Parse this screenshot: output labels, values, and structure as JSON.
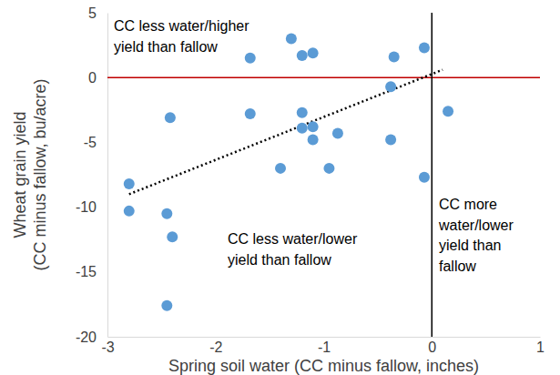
{
  "chart_data": {
    "type": "scatter",
    "x_label": "Spring soil water (CC minus fallow, inches)",
    "y_label": [
      "Wheat grain yield",
      "(CC minus fallow, bu/acre)"
    ],
    "x": [
      -2.8,
      -2.8,
      -2.45,
      -2.42,
      -2.4,
      -2.45,
      -1.68,
      -1.68,
      -1.4,
      -1.3,
      -1.2,
      -1.2,
      -1.2,
      -1.1,
      -1.1,
      -1.1,
      -0.95,
      -0.87,
      -0.38,
      -0.38,
      -0.35,
      -0.07,
      -0.07,
      0.15
    ],
    "values": [
      -8.2,
      -10.3,
      -10.5,
      -3.1,
      -12.3,
      -17.6,
      1.5,
      -2.8,
      -7.0,
      3.0,
      1.7,
      -2.7,
      -3.9,
      1.9,
      -3.8,
      -4.8,
      -7.0,
      -4.3,
      -0.7,
      -4.8,
      1.6,
      2.3,
      -7.7,
      -2.6
    ],
    "color": "#5b9bd5",
    "marker": "circle",
    "trendline": {
      "x": [
        -2.8,
        0.1
      ],
      "values": [
        -9.0,
        0.6
      ],
      "color": "#000000",
      "line_style": "dotted"
    },
    "hline": {
      "value": 0,
      "color": "#c00000"
    },
    "vline": {
      "value": 0,
      "color": "#000000"
    },
    "annotations": [
      {
        "lines": [
          "CC less water/higher",
          "yield than fallow"
        ]
      },
      {
        "lines": [
          "CC less water/lower",
          "yield than fallow"
        ]
      },
      {
        "lines": [
          "CC more",
          "water/lower",
          "yield than",
          "fallow"
        ]
      }
    ],
    "xlim": [
      -3,
      1
    ],
    "xticks": [
      -3,
      -2,
      -1,
      0,
      1
    ],
    "ylim": [
      -20,
      5
    ],
    "yticks": [
      -20,
      -15,
      -10,
      -5,
      0,
      5
    ],
    "grid": false
  }
}
